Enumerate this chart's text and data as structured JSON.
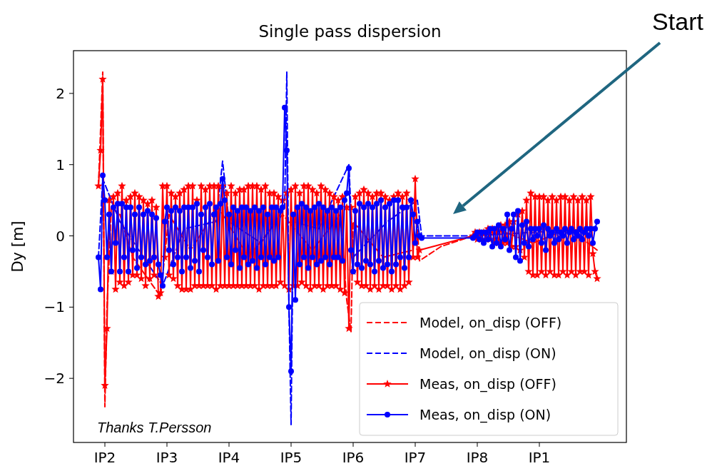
{
  "chart_data": {
    "type": "line",
    "title": "Single pass dispersion",
    "ylabel": "Dy [m]",
    "categories": [
      null,
      null,
      null,
      "IP2",
      null,
      null,
      null,
      null,
      null,
      null,
      null,
      null,
      null,
      null,
      null,
      null,
      null,
      null,
      null,
      null,
      null,
      null,
      null,
      null,
      null,
      null,
      null,
      null,
      null,
      null,
      null,
      null,
      "IP3",
      null,
      null,
      null,
      null,
      null,
      null,
      null,
      null,
      null,
      null,
      null,
      null,
      null,
      null,
      null,
      null,
      null,
      null,
      null,
      null,
      null,
      null,
      null,
      null,
      null,
      null,
      null,
      null,
      "IP4",
      null,
      null,
      null,
      null,
      null,
      null,
      null,
      null,
      null,
      null,
      null,
      null,
      null,
      null,
      null,
      null,
      null,
      null,
      null,
      null,
      null,
      null,
      null,
      null,
      null,
      null,
      null,
      null,
      "IP5",
      null,
      null,
      null,
      null,
      null,
      null,
      null,
      null,
      null,
      null,
      null,
      null,
      null,
      null,
      null,
      null,
      null,
      null,
      null,
      null,
      null,
      null,
      null,
      null,
      null,
      null,
      null,
      null,
      "IP6",
      null,
      null,
      null,
      null,
      null,
      null,
      null,
      null,
      null,
      null,
      null,
      null,
      null,
      null,
      null,
      null,
      null,
      null,
      null,
      null,
      null,
      null,
      null,
      null,
      null,
      null,
      null,
      null,
      "IP7",
      null,
      null,
      null,
      null,
      null,
      null,
      null,
      null,
      null,
      null,
      null,
      null,
      null,
      null,
      null,
      null,
      null,
      null,
      null,
      null,
      null,
      null,
      null,
      null,
      null,
      null,
      null,
      null,
      "IP8",
      null,
      null,
      null,
      null,
      null,
      null,
      null,
      null,
      null,
      null,
      null,
      null,
      null,
      null,
      null,
      null,
      null,
      null,
      null,
      null,
      null,
      null,
      null,
      null,
      null,
      null,
      null,
      null,
      "IP1",
      null,
      null,
      null,
      null,
      null,
      null,
      null,
      null,
      null,
      null,
      null,
      null,
      null,
      null,
      null,
      null,
      null,
      null,
      null,
      null,
      null,
      null,
      null,
      null,
      null,
      null,
      null
    ],
    "ylim": [
      -2.9,
      2.6
    ],
    "yticks": [
      {
        "value": -2,
        "label": "−2"
      },
      {
        "value": -1,
        "label": "−1"
      },
      0,
      1,
      2
    ],
    "legend": "bottom right",
    "annotations": [
      "Start",
      "Thanks T.Persson"
    ],
    "series": [
      {
        "name": "Model, on_disp (OFF)",
        "color": "#ff0000",
        "line_style": "dashed",
        "marker": "none",
        "values": [
          0.7,
          null,
          2.3,
          -2.4,
          -1.0,
          null,
          0.4,
          null,
          null,
          null,
          0.3,
          null,
          null,
          null,
          null,
          null,
          -0.3,
          null,
          null,
          null,
          null,
          null,
          null,
          null,
          null,
          null,
          null,
          null,
          null,
          -0.85,
          null,
          null,
          null,
          0.3,
          null,
          null,
          null,
          null,
          null,
          null,
          null,
          null,
          null,
          -0.2,
          null,
          null,
          null,
          null,
          null,
          null,
          null,
          null,
          null,
          null,
          null,
          null,
          0.4,
          null,
          null,
          null,
          null,
          null,
          null,
          null,
          null,
          null,
          null,
          null,
          null,
          null,
          -0.3,
          null,
          null,
          null,
          null,
          null,
          null,
          null,
          null,
          null,
          null,
          null,
          null,
          null,
          null,
          null,
          0.3,
          null,
          null,
          null,
          null,
          null,
          null,
          null,
          null,
          null,
          null,
          null,
          null,
          null,
          -0.2,
          null,
          null,
          null,
          null,
          null,
          null,
          null,
          null,
          null,
          null,
          null,
          null,
          0.3,
          null,
          null,
          -0.9,
          null,
          -1.35,
          0.2,
          null,
          null,
          null,
          null,
          null,
          null,
          null,
          null,
          null,
          null,
          null,
          null,
          null,
          -0.3,
          null,
          null,
          null,
          null,
          null,
          null,
          null,
          null,
          null,
          null,
          null,
          null,
          null,
          -0.2,
          0.55,
          null,
          -0.35,
          null,
          null,
          null,
          null,
          null,
          null,
          null,
          null,
          null,
          -0.15,
          null,
          null,
          null,
          null,
          null,
          null,
          null,
          null,
          null,
          null,
          null,
          null,
          null,
          null,
          0,
          null,
          null,
          null,
          null,
          null,
          null,
          null,
          null,
          null,
          null,
          null,
          null,
          null,
          null,
          0.05,
          null,
          null,
          null,
          null,
          null,
          null,
          null,
          null,
          null,
          null,
          null,
          null,
          -0.1,
          null,
          null,
          null,
          null,
          null,
          null,
          null,
          null,
          null,
          null,
          null,
          null,
          null,
          null,
          null,
          null,
          0.1,
          null,
          null,
          null,
          null,
          null,
          null,
          null,
          null,
          null,
          null,
          null,
          null,
          -0.2
        ]
      },
      {
        "name": "Model, on_disp (ON)",
        "color": "#0000ff",
        "line_style": "dashed",
        "marker": "none",
        "values": [
          -0.3,
          null,
          0.8,
          null,
          null,
          null,
          null,
          null,
          null,
          null,
          0.2,
          null,
          null,
          null,
          null,
          null,
          null,
          null,
          null,
          null,
          null,
          null,
          null,
          null,
          null,
          null,
          null,
          null,
          null,
          null,
          -0.7,
          null,
          null,
          null,
          null,
          null,
          null,
          null,
          null,
          null,
          0.1,
          null,
          null,
          null,
          null,
          null,
          null,
          null,
          null,
          null,
          null,
          null,
          null,
          null,
          null,
          0.2,
          null,
          null,
          1.05,
          null,
          null,
          0.2,
          null,
          null,
          null,
          null,
          null,
          null,
          null,
          null,
          null,
          null,
          null,
          null,
          null,
          null,
          -0.1,
          null,
          null,
          null,
          null,
          null,
          null,
          null,
          null,
          null,
          null,
          0.4,
          2.3,
          -1.0,
          -2.65,
          0.2,
          null,
          null,
          null,
          null,
          null,
          null,
          null,
          null,
          null,
          null,
          null,
          0.1,
          null,
          null,
          null,
          null,
          null,
          null,
          null,
          null,
          null,
          null,
          null,
          null,
          null,
          1.0,
          null,
          -0.3,
          null,
          null,
          null,
          null,
          null,
          null,
          null,
          null,
          null,
          null,
          null,
          null,
          null,
          null,
          null,
          0.2,
          null,
          null,
          null,
          null,
          null,
          null,
          null,
          null,
          null,
          null,
          null,
          null,
          null,
          0.5,
          null,
          0,
          null,
          null,
          null,
          null,
          null,
          null,
          null,
          null,
          null,
          null,
          null,
          null,
          null,
          null,
          null,
          null,
          null,
          null,
          null,
          null,
          null,
          null,
          null,
          0,
          null,
          null,
          null,
          null,
          null,
          null,
          null,
          null,
          null,
          null,
          null,
          null,
          null,
          null,
          null,
          null,
          null,
          null,
          null,
          null,
          null,
          null,
          null,
          null,
          null,
          null,
          null,
          0.05,
          null,
          null,
          null,
          null,
          null,
          null,
          null,
          null,
          null,
          null,
          null,
          null,
          null,
          null,
          null,
          null,
          null,
          null,
          null,
          null,
          null,
          null,
          null,
          null,
          null,
          null,
          null,
          null,
          null,
          0.1
        ]
      },
      {
        "name": "Meas, on_disp (OFF)",
        "color": "#ff0000",
        "line_style": "solid",
        "marker": "star",
        "values": [
          0.7,
          1.2,
          2.2,
          -2.1,
          -1.3,
          0.5,
          -0.5,
          0.55,
          -0.75,
          0.6,
          -0.65,
          0.7,
          -0.7,
          0.5,
          -0.65,
          0.55,
          -0.55,
          0.6,
          -0.55,
          0.55,
          -0.6,
          0.5,
          -0.7,
          0.45,
          -0.6,
          0.5,
          -0.55,
          0.4,
          -0.85,
          -0.8,
          0.7,
          -0.3,
          0.7,
          -0.55,
          0.6,
          -0.6,
          0.55,
          -0.7,
          0.6,
          -0.75,
          0.65,
          -0.75,
          0.7,
          -0.75,
          0.7,
          -0.7,
          0.5,
          -0.7,
          0.7,
          -0.7,
          0.65,
          -0.7,
          0.7,
          -0.7,
          0.7,
          -0.75,
          0.7,
          -0.7,
          0.7,
          -0.7,
          0.6,
          -0.7,
          0.7,
          -0.7,
          0.6,
          -0.7,
          0.65,
          -0.7,
          0.65,
          -0.7,
          0.7,
          -0.7,
          0.7,
          -0.7,
          0.7,
          -0.75,
          0.65,
          -0.7,
          0.7,
          -0.7,
          0.6,
          -0.7,
          0.6,
          -0.7,
          0.55,
          -0.65,
          0.5,
          -0.7,
          0.6,
          -0.75,
          0.65,
          -0.7,
          0.7,
          -0.7,
          0.6,
          -0.65,
          0.7,
          -0.7,
          0.7,
          -0.75,
          0.65,
          -0.7,
          0.6,
          -0.7,
          0.7,
          -0.75,
          0.65,
          -0.7,
          0.6,
          -0.7,
          0.55,
          -0.7,
          0.5,
          -0.75,
          0.55,
          -0.8,
          0.4,
          -1.3,
          0.4,
          -0.5,
          0.55,
          -0.65,
          0.6,
          -0.7,
          0.65,
          -0.7,
          0.6,
          -0.75,
          0.55,
          -0.7,
          0.6,
          -0.75,
          0.6,
          -0.7,
          0.55,
          -0.7,
          0.5,
          -0.75,
          0.55,
          -0.7,
          0.6,
          -0.75,
          0.55,
          -0.7,
          0.6,
          -0.65,
          0.5,
          -0.3,
          0.8,
          -0.3,
          -0.2,
          null,
          null,
          null,
          null,
          null,
          null,
          null,
          null,
          null,
          null,
          null,
          null,
          null,
          null,
          null,
          null,
          null,
          null,
          null,
          null,
          null,
          null,
          null,
          null,
          0,
          0.05,
          -0.05,
          0.05,
          -0.05,
          0.05,
          -0.05,
          0.1,
          -0.05,
          0.1,
          -0.1,
          0.1,
          -0.1,
          0.15,
          -0.1,
          0.15,
          -0.1,
          0.2,
          -0.15,
          0.2,
          -0.15,
          0.3,
          -0.2,
          0.35,
          -0.3,
          0.5,
          -0.5,
          0.6,
          -0.55,
          0.55,
          -0.55,
          0.55,
          -0.5,
          0.55,
          -0.55,
          0.5,
          -0.5,
          0.55,
          -0.55,
          0.5,
          -0.55,
          0.55,
          -0.5,
          0.55,
          -0.55,
          0.5,
          -0.5,
          0.55,
          -0.55,
          0.5,
          -0.5,
          0.55,
          -0.5,
          0.5,
          -0.55,
          0.55,
          -0.25,
          -0.5,
          -0.6
        ]
      },
      {
        "name": "Meas, on_disp (ON)",
        "color": "#0000ff",
        "line_style": "solid",
        "marker": "circle",
        "values": [
          -0.3,
          -0.75,
          0.85,
          0.5,
          -0.3,
          0.3,
          -0.5,
          0.4,
          -0.1,
          0.45,
          -0.5,
          0.45,
          -0.3,
          0.4,
          -0.5,
          0.4,
          -0.2,
          0.3,
          -0.45,
          0.4,
          -0.3,
          0.3,
          -0.4,
          0.35,
          -0.35,
          0.3,
          -0.3,
          0.25,
          -0.4,
          -0.55,
          -0.7,
          0.2,
          0.4,
          -0.2,
          0.35,
          -0.4,
          0.4,
          -0.3,
          0.35,
          -0.5,
          0.4,
          -0.3,
          0.4,
          -0.45,
          0.4,
          -0.35,
          0.45,
          -0.5,
          0.3,
          -0.2,
          0.4,
          -0.3,
          0.45,
          -0.4,
          0.3,
          0.4,
          -0.35,
          0.45,
          0.8,
          0.5,
          -0.3,
          0.3,
          -0.4,
          0.4,
          -0.2,
          0.35,
          -0.45,
          0.4,
          -0.3,
          0.4,
          -0.4,
          0.35,
          -0.35,
          0.4,
          -0.45,
          0.35,
          -0.3,
          0.4,
          -0.4,
          0.3,
          -0.3,
          0.4,
          -0.35,
          0.4,
          -0.3,
          0.35,
          0.4,
          1.8,
          1.2,
          -1.0,
          -1.9,
          0.3,
          -0.9,
          0.4,
          -0.4,
          0.45,
          -0.3,
          0.4,
          -0.45,
          0.35,
          -0.3,
          0.4,
          -0.4,
          0.45,
          -0.35,
          0.4,
          -0.3,
          0.35,
          -0.4,
          0.4,
          -0.3,
          0.35,
          -0.3,
          0.4,
          -0.35,
          0.5,
          0.6,
          0.95,
          -0.2,
          -0.5,
          0.35,
          -0.4,
          0.45,
          -0.45,
          0.4,
          -0.35,
          0.45,
          -0.4,
          0.4,
          -0.5,
          0.45,
          -0.35,
          0.5,
          -0.45,
          0.4,
          -0.4,
          0.45,
          -0.5,
          0.5,
          -0.4,
          0.5,
          -0.3,
          0.4,
          -0.45,
          0.4,
          -0.3,
          0.5,
          0.3,
          -0.1,
          0.2,
          0,
          -0.03,
          null,
          null,
          null,
          null,
          null,
          null,
          null,
          null,
          null,
          null,
          null,
          null,
          null,
          null,
          null,
          null,
          null,
          null,
          null,
          null,
          null,
          null,
          null,
          -0.03,
          0,
          0.05,
          -0.05,
          0.05,
          -0.1,
          0.05,
          -0.05,
          0.1,
          -0.15,
          0.1,
          -0.1,
          0.15,
          -0.15,
          0.1,
          -0.05,
          0.3,
          -0.2,
          0.1,
          0.3,
          -0.3,
          0.35,
          -0.35,
          0.15,
          -0.1,
          0.2,
          -0.15,
          0.1,
          -0.05,
          0.1,
          0,
          0.1,
          -0.1,
          0.15,
          -0.2,
          0.1,
          0,
          0.05,
          -0.1,
          0.1,
          -0.05,
          0.05,
          0,
          0.1,
          -0.1,
          0.05,
          0.1,
          -0.05,
          0.05,
          0,
          0.1,
          -0.05,
          0.05,
          0.1,
          0,
          0.1,
          -0.1,
          0.1,
          0.2
        ]
      }
    ]
  }
}
